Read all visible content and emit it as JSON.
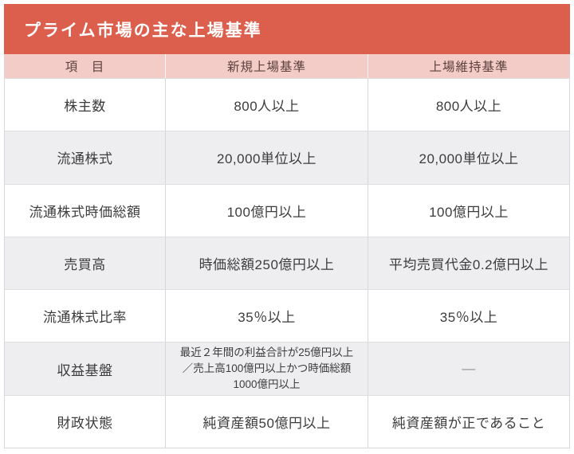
{
  "title": "プライム市場の主な上場基準",
  "colors": {
    "accent": "#DC5F4E",
    "header_bg": "#F3CBC7",
    "alt_row_bg": "#EEEEF0",
    "body_text": "#3C3C3E",
    "header_text": "#5B413E",
    "muted_text": "#909092"
  },
  "table": {
    "headers": [
      "項　目",
      "新規上場基準",
      "上場維持基準"
    ],
    "rows": [
      {
        "item": "株主数",
        "new": "800人以上",
        "maintain": "800人以上"
      },
      {
        "item": "流通株式",
        "new": "20,000単位以上",
        "maintain": "20,000単位以上"
      },
      {
        "item": "流通株式時価総額",
        "new": "100億円以上",
        "maintain": "100億円以上"
      },
      {
        "item": "売買高",
        "new": "時価総額250億円以上",
        "maintain": "平均売買代金0.2億円以上"
      },
      {
        "item": "流通株式比率",
        "new": "35％以上",
        "maintain": "35％以上"
      },
      {
        "item": "収益基盤",
        "new": "最近２年間の利益合計が25億円以上\n／売上高100億円以上かつ時価総額\n1000億円以上",
        "maintain": "—"
      },
      {
        "item": "財政状態",
        "new": "純資産額50億円以上",
        "maintain": "純資産額が正であること"
      }
    ]
  }
}
